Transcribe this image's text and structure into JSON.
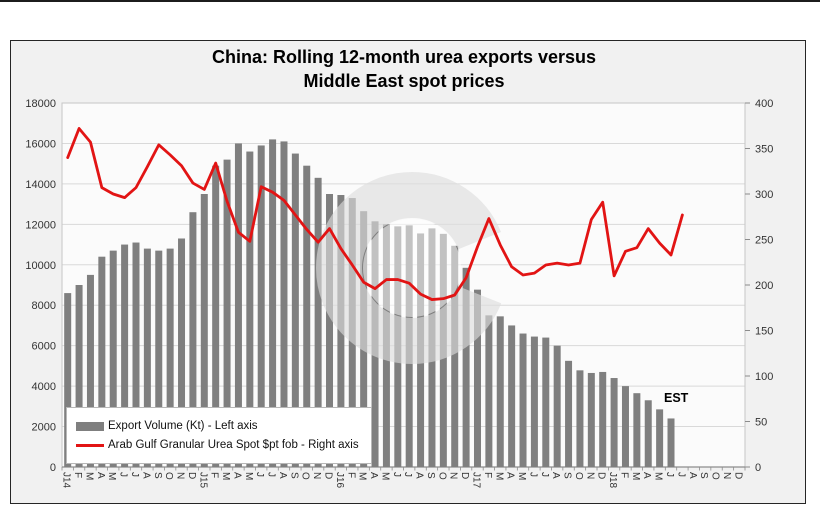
{
  "title": {
    "line1": "China: Rolling 12-month urea exports versus",
    "line2": "Middle East spot prices"
  },
  "annotations": {
    "est_label": "EST"
  },
  "legend": {
    "position": "bottom-left-inside",
    "items": [
      {
        "label": "Export Volume (Kt) - Left axis",
        "swatch": "bar"
      },
      {
        "label": "Arab Gulf Granular Urea Spot $pt fob - Right axis",
        "swatch": "line"
      }
    ]
  },
  "colors": {
    "bar": "#7f7f7f",
    "line": "#e21414",
    "gridline": "#d9d9d9",
    "axis_text": "#333333",
    "plot_bg": "#fbfbfb",
    "frame_bg": "#f1f1f1",
    "watermark": "#dedede"
  },
  "chart_data": {
    "type": "bar",
    "subtype": "combo-bar-line-dual-axis",
    "title": "China: Rolling 12-month urea exports versus Middle East spot prices",
    "grid": "horizontal-on",
    "left_axis": {
      "min": 0,
      "max": 18000,
      "step": 2000,
      "tick_labels": [
        "0",
        "2000",
        "4000",
        "6000",
        "8000",
        "10000",
        "12000",
        "14000",
        "16000",
        "18000"
      ]
    },
    "right_axis": {
      "min": 0,
      "max": 400,
      "step": 50,
      "tick_labels": [
        "0",
        "50",
        "100",
        "150",
        "200",
        "250",
        "300",
        "350",
        "400"
      ]
    },
    "x_labels": [
      "J14",
      "F",
      "M",
      "A",
      "M",
      "J",
      "J",
      "A",
      "S",
      "O",
      "N",
      "D",
      "J15",
      "F",
      "M",
      "A",
      "M",
      "J",
      "J",
      "A",
      "S",
      "O",
      "N",
      "D",
      "J16",
      "F",
      "M",
      "A",
      "M",
      "J",
      "J",
      "A",
      "S",
      "O",
      "N",
      "D",
      "J17",
      "F",
      "M",
      "A",
      "M",
      "J",
      "J",
      "A",
      "S",
      "O",
      "N",
      "D",
      "J18",
      "F",
      "M",
      "A",
      "M",
      "J",
      "J",
      "A",
      "S",
      "O",
      "N",
      "D"
    ],
    "series": [
      {
        "name": "Export Volume (Kt) - Left axis",
        "type": "bar",
        "axis": "left",
        "color": "#7f7f7f",
        "values": [
          8600,
          9000,
          9500,
          10400,
          10700,
          11000,
          11100,
          10800,
          10700,
          10800,
          11300,
          12600,
          13500,
          14900,
          15200,
          16000,
          15600,
          15900,
          16200,
          16100,
          15500,
          14900,
          14300,
          13500,
          13450,
          13300,
          12650,
          12150,
          12000,
          11900,
          11950,
          11550,
          11800,
          11530,
          10940,
          9850,
          8770,
          7500,
          7450,
          7000,
          6600,
          6450,
          6400,
          6000,
          5250,
          4780,
          4650,
          4700,
          4400,
          4000,
          3650,
          3300,
          2850,
          2400
        ]
      },
      {
        "name": "Arab Gulf Granular Urea Spot $pt fob - Right axis",
        "type": "line",
        "axis": "right",
        "color": "#e21414",
        "values": [
          340,
          372,
          357,
          307,
          300,
          296,
          307,
          330,
          354,
          343,
          331,
          312,
          305,
          334,
          292,
          258,
          248,
          308,
          302,
          293,
          277,
          261,
          247,
          262,
          240,
          222,
          203,
          196,
          206,
          206,
          202,
          190,
          184,
          185,
          189,
          208,
          242,
          273,
          244,
          220,
          211,
          213,
          222,
          224,
          222,
          224,
          272,
          291,
          210,
          237,
          241,
          262,
          246,
          233,
          277
        ]
      }
    ]
  }
}
